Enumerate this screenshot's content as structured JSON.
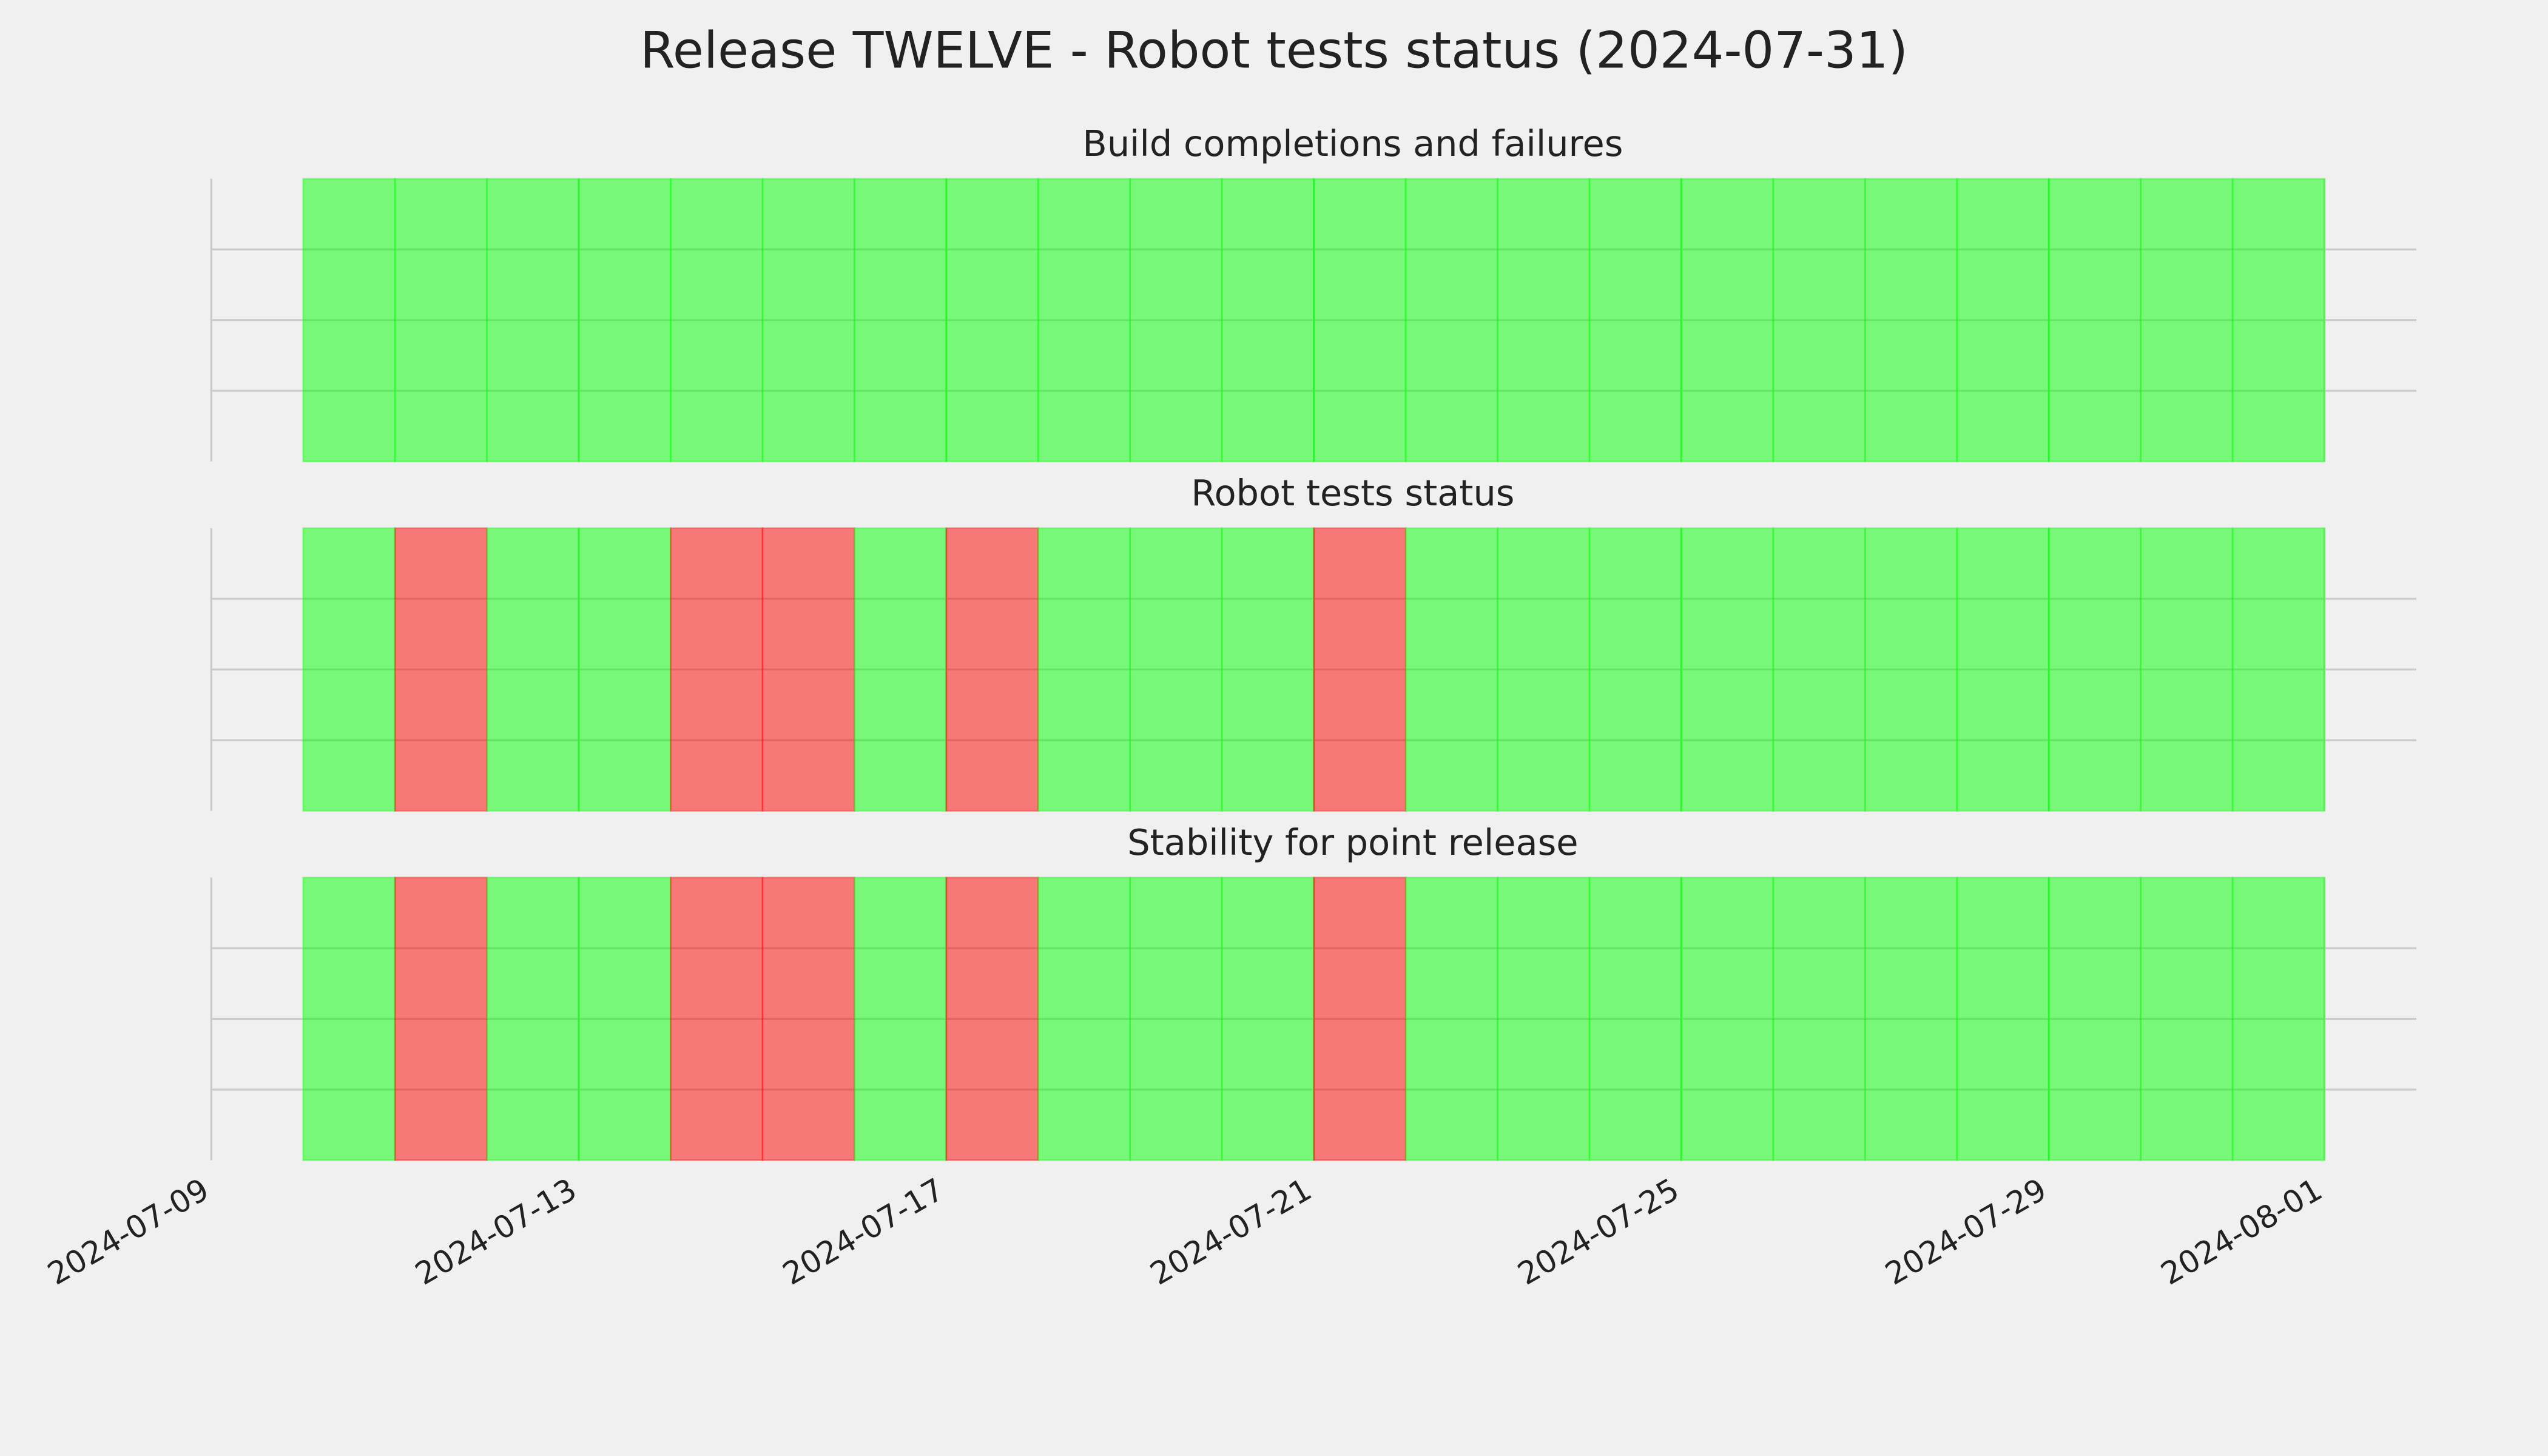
{
  "title": "Release TWELVE - Robot tests status (2024-07-31)",
  "chart_data": [
    {
      "type": "timeline",
      "title": "Build completions and failures",
      "x": [
        "2024-07-10",
        "2024-07-11",
        "2024-07-12",
        "2024-07-13",
        "2024-07-14",
        "2024-07-15",
        "2024-07-16",
        "2024-07-17",
        "2024-07-18",
        "2024-07-19",
        "2024-07-20",
        "2024-07-21",
        "2024-07-22",
        "2024-07-23",
        "2024-07-24",
        "2024-07-25",
        "2024-07-26",
        "2024-07-27",
        "2024-07-28",
        "2024-07-29",
        "2024-07-30",
        "2024-07-31"
      ],
      "values": [
        1,
        1,
        1,
        1,
        1,
        1,
        1,
        1,
        1,
        1,
        1,
        1,
        1,
        1,
        1,
        1,
        1,
        1,
        1,
        1,
        1,
        1
      ],
      "colors": [
        "#ff0000",
        "#00ff00"
      ],
      "xlim": [
        "2024-07-09",
        "2024-08-02"
      ],
      "xticks": [
        "2024-07-09",
        "2024-07-13",
        "2024-07-17",
        "2024-07-21",
        "2024-07-25",
        "2024-07-29",
        "2024-08-01"
      ],
      "grid": true
    },
    {
      "type": "timeline",
      "title": "Robot tests status",
      "x": [
        "2024-07-10",
        "2024-07-11",
        "2024-07-12",
        "2024-07-13",
        "2024-07-14",
        "2024-07-15",
        "2024-07-16",
        "2024-07-17",
        "2024-07-18",
        "2024-07-19",
        "2024-07-20",
        "2024-07-21",
        "2024-07-22",
        "2024-07-23",
        "2024-07-24",
        "2024-07-25",
        "2024-07-26",
        "2024-07-27",
        "2024-07-28",
        "2024-07-29",
        "2024-07-30",
        "2024-07-31"
      ],
      "values": [
        1,
        0,
        1,
        1,
        0,
        0,
        1,
        0,
        1,
        1,
        1,
        0,
        1,
        1,
        1,
        1,
        1,
        1,
        1,
        1,
        1,
        1
      ],
      "colors": [
        "#ff0000",
        "#00ff00"
      ],
      "xlim": [
        "2024-07-09",
        "2024-08-02"
      ],
      "xticks": [
        "2024-07-09",
        "2024-07-13",
        "2024-07-17",
        "2024-07-21",
        "2024-07-25",
        "2024-07-29",
        "2024-08-01"
      ],
      "grid": true
    },
    {
      "type": "timeline",
      "title": "Stability for point release",
      "x": [
        "2024-07-10",
        "2024-07-11",
        "2024-07-12",
        "2024-07-13",
        "2024-07-14",
        "2024-07-15",
        "2024-07-16",
        "2024-07-17",
        "2024-07-18",
        "2024-07-19",
        "2024-07-20",
        "2024-07-21",
        "2024-07-22",
        "2024-07-23",
        "2024-07-24",
        "2024-07-25",
        "2024-07-26",
        "2024-07-27",
        "2024-07-28",
        "2024-07-29",
        "2024-07-30",
        "2024-07-31"
      ],
      "values": [
        1,
        0,
        1,
        1,
        0,
        0,
        1,
        0,
        1,
        1,
        1,
        0,
        1,
        1,
        1,
        1,
        1,
        1,
        1,
        1,
        1,
        1
      ],
      "colors": [
        "#ff0000",
        "#00ff00"
      ],
      "xlim": [
        "2024-07-09",
        "2024-08-02"
      ],
      "xticks": [
        "2024-07-09",
        "2024-07-13",
        "2024-07-17",
        "2024-07-21",
        "2024-07-25",
        "2024-07-29",
        "2024-08-01"
      ],
      "grid": true
    }
  ]
}
